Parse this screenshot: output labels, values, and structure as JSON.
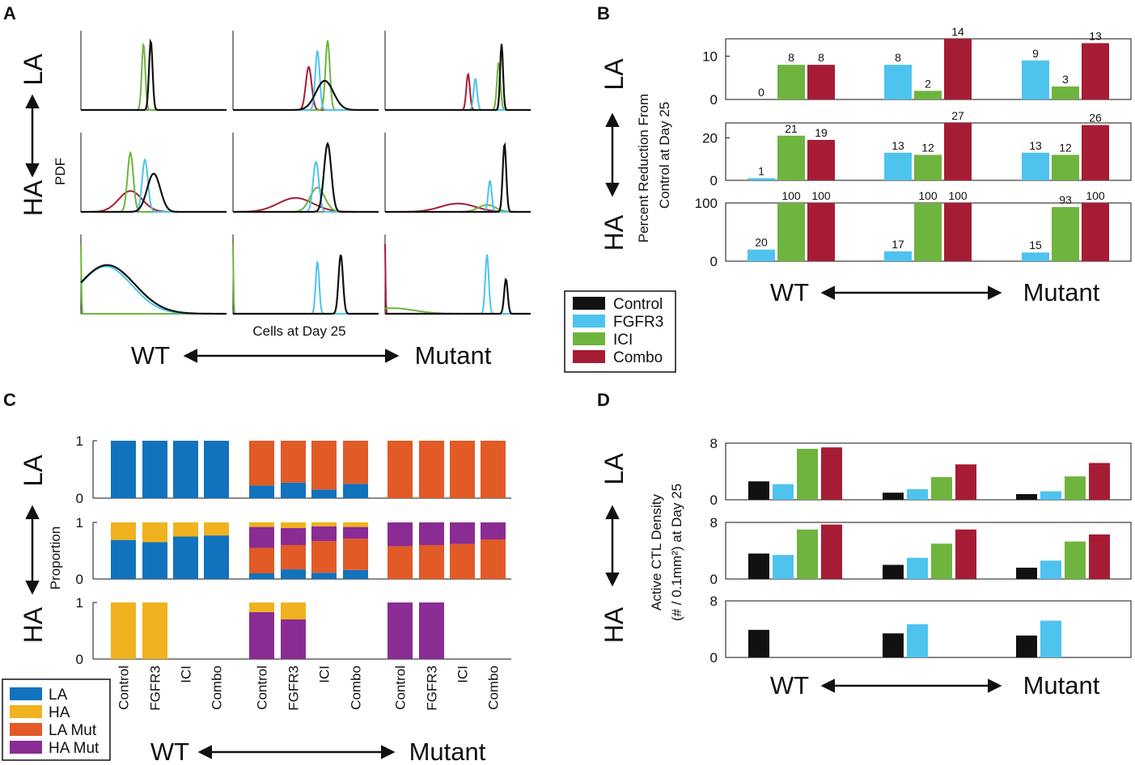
{
  "colors": {
    "control": "#111111",
    "fgfr3": "#4ec3ee",
    "ici": "#6fb43f",
    "combo": "#a61c34",
    "la": "#1172be",
    "ha": "#f0b21e",
    "la_mut": "#e25a26",
    "ha_mut": "#8a2c94"
  },
  "row_labels": {
    "la": "LA",
    "ha": "HA"
  },
  "direction": {
    "wt": "WT",
    "mutant": "Mutant"
  },
  "chart_data": [
    {
      "panel": "A",
      "type": "line",
      "ylabel": "PDF",
      "xlabel": "Cells at Day 25",
      "series_names": [
        "Control",
        "FGFR3",
        "ICI",
        "Combo"
      ],
      "grid": [
        [
          {
            "peaks": {
              "Control": [
                [
                  0.48,
                  0.012,
                  1.0
                ]
              ],
              "ICI": [
                [
                  0.43,
                  0.012,
                  0.95
                ]
              ]
            }
          },
          {
            "peaks": {
              "Control": [
                [
                  0.63,
                  0.06,
                  0.42
                ]
              ],
              "Combo": [
                [
                  0.52,
                  0.02,
                  0.62
                ]
              ],
              "FGFR3": [
                [
                  0.58,
                  0.015,
                  0.85
                ]
              ],
              "ICI": [
                [
                  0.65,
                  0.015,
                  1.0
                ]
              ]
            }
          },
          {
            "peaks": {
              "Control": [
                [
                  0.8,
                  0.01,
                  0.95
                ]
              ],
              "Combo": [
                [
                  0.57,
                  0.012,
                  0.52
                ]
              ],
              "FGFR3": [
                [
                  0.62,
                  0.012,
                  0.45
                ]
              ],
              "ICI": [
                [
                  0.78,
                  0.012,
                  0.68
                ]
              ]
            }
          }
        ],
        [
          {
            "peaks": {
              "Control": [
                [
                  0.5,
                  0.045,
                  0.55
                ]
              ],
              "ICI": [
                [
                  0.34,
                  0.02,
                  0.85
                ]
              ],
              "FGFR3": [
                [
                  0.44,
                  0.02,
                  0.75
                ]
              ],
              "Combo": [
                [
                  0.34,
                  0.08,
                  0.3
                ]
              ]
            }
          },
          {
            "peaks": {
              "Control": [
                [
                  0.65,
                  0.025,
                  0.98
                ]
              ],
              "Combo": [
                [
                  0.43,
                  0.12,
                  0.2
                ]
              ],
              "FGFR3": [
                [
                  0.57,
                  0.02,
                  0.72
                ]
              ],
              "ICI": [
                [
                  0.58,
                  0.05,
                  0.35
                ]
              ]
            }
          },
          {
            "peaks": {
              "Control": [
                [
                  0.82,
                  0.012,
                  0.98
                ]
              ],
              "Combo": [
                [
                  0.5,
                  0.12,
                  0.12
                ]
              ],
              "FGFR3": [
                [
                  0.72,
                  0.012,
                  0.45
                ]
              ],
              "ICI": [
                [
                  0.7,
                  0.06,
                  0.1
                ]
              ]
            }
          }
        ],
        [
          {
            "peaks": {
              "Control": [
                [
                  0.18,
                  0.19,
                  0.7
                ]
              ],
              "FGFR3": [
                [
                  0.17,
                  0.18,
                  0.68
                ]
              ],
              "ICI": [
                [
                  0.0,
                  0.003,
                  1.0
                ]
              ]
            }
          },
          {
            "peaks": {
              "Control": [
                [
                  0.74,
                  0.015,
                  0.85
                ]
              ],
              "FGFR3": [
                [
                  0.58,
                  0.012,
                  0.75
                ]
              ],
              "ICI": [
                [
                  0.0,
                  0.003,
                  1.0
                ]
              ]
            }
          },
          {
            "peaks": {
              "Control": [
                [
                  0.83,
                  0.012,
                  0.5
                ]
              ],
              "FGFR3": [
                [
                  0.7,
                  0.012,
                  0.85
                ]
              ],
              "Combo": [
                [
                  0.0,
                  0.003,
                  1.0
                ]
              ],
              "ICI": [
                [
                  0.05,
                  0.15,
                  0.08
                ]
              ]
            }
          }
        ]
      ]
    },
    {
      "panel": "B",
      "type": "bar",
      "ylabel_lines": [
        "Percent Reduction From",
        "Control at Day 25"
      ],
      "groups": [
        "WT",
        "",
        "Mutant"
      ],
      "series": [
        "FGFR3",
        "ICI",
        "Combo"
      ],
      "rows": [
        {
          "ylim": [
            0,
            14
          ],
          "ticks": [
            0,
            10
          ],
          "values": [
            [
              0,
              8,
              8
            ],
            [
              8,
              2,
              14
            ],
            [
              9,
              3,
              13
            ]
          ],
          "labels": [
            [
              "0",
              "8",
              "8"
            ],
            [
              "8",
              "2",
              "14"
            ],
            [
              "9",
              "3",
              "13"
            ]
          ]
        },
        {
          "ylim": [
            0,
            27
          ],
          "ticks": [
            0,
            20
          ],
          "values": [
            [
              1,
              21,
              19
            ],
            [
              13,
              12,
              27
            ],
            [
              13,
              12,
              26
            ]
          ],
          "labels": [
            [
              "1",
              "21",
              "19"
            ],
            [
              "13",
              "12",
              "27"
            ],
            [
              "13",
              "12",
              "26"
            ]
          ]
        },
        {
          "ylim": [
            0,
            100
          ],
          "ticks": [
            0,
            100
          ],
          "values": [
            [
              20,
              100,
              100
            ],
            [
              17,
              100,
              100
            ],
            [
              15,
              93,
              100
            ]
          ],
          "labels": [
            [
              "20",
              "100",
              "100"
            ],
            [
              "17",
              "100",
              "100"
            ],
            [
              "15",
              "93",
              "100"
            ]
          ]
        }
      ]
    },
    {
      "panel": "C",
      "type": "bar",
      "stacked": true,
      "ylabel": "Proportion",
      "categories": [
        "Control",
        "FGFR3",
        "ICI",
        "Combo",
        "Control",
        "FGFR3",
        "ICI",
        "Combo",
        "Control",
        "FGFR3",
        "ICI",
        "Combo"
      ],
      "components": [
        "LA",
        "HA",
        "LA Mut",
        "HA Mut"
      ],
      "ticks": [
        0,
        1
      ],
      "rows": [
        [
          [
            1,
            0,
            0,
            0
          ],
          [
            1,
            0,
            0,
            0
          ],
          [
            1,
            0,
            0,
            0
          ],
          [
            1,
            0,
            0,
            0
          ],
          [
            0.22,
            0,
            0.78,
            0
          ],
          [
            0.27,
            0,
            0.73,
            0
          ],
          [
            0.15,
            0,
            0.85,
            0
          ],
          [
            0.25,
            0,
            0.75,
            0
          ],
          [
            0,
            0,
            1,
            0
          ],
          [
            0,
            0,
            1,
            0
          ],
          [
            0,
            0,
            1,
            0
          ],
          [
            0,
            0,
            1,
            0
          ]
        ],
        [
          [
            0.69,
            0.31,
            0,
            0
          ],
          [
            0.65,
            0.35,
            0,
            0
          ],
          [
            0.75,
            0.25,
            0,
            0
          ],
          [
            0.77,
            0.23,
            0,
            0
          ],
          [
            0.1,
            0.08,
            0.45,
            0.37
          ],
          [
            0.17,
            0.1,
            0.43,
            0.3
          ],
          [
            0.11,
            0.07,
            0.56,
            0.26
          ],
          [
            0.16,
            0.08,
            0.55,
            0.21
          ],
          [
            0,
            0,
            0.58,
            0.42
          ],
          [
            0,
            0,
            0.6,
            0.4
          ],
          [
            0,
            0,
            0.62,
            0.38
          ],
          [
            0,
            0,
            0.7,
            0.3
          ]
        ],
        [
          [
            0,
            1,
            0,
            0
          ],
          [
            0,
            1,
            0,
            0
          ],
          null,
          null,
          [
            0,
            0.17,
            0,
            0.83
          ],
          [
            0,
            0.3,
            0,
            0.7
          ],
          null,
          null,
          [
            0,
            0,
            0,
            1
          ],
          [
            0,
            0,
            0,
            1
          ],
          null,
          null
        ]
      ]
    },
    {
      "panel": "D",
      "type": "bar",
      "ylabel_lines": [
        "Active CTL Density",
        "(# / 0.1mm²) at Day 25"
      ],
      "series": [
        "Control",
        "FGFR3",
        "ICI",
        "Combo"
      ],
      "ylim": [
        0,
        8
      ],
      "ticks": [
        0,
        8
      ],
      "rows": [
        [
          [
            2.6,
            2.2,
            7.2,
            7.4
          ],
          [
            1.0,
            1.5,
            3.2,
            5.0
          ],
          [
            0.8,
            1.2,
            3.3,
            5.2
          ]
        ],
        [
          [
            3.6,
            3.4,
            7.0,
            7.7
          ],
          [
            2.0,
            3.0,
            5.0,
            7.0
          ],
          [
            1.6,
            2.6,
            5.3,
            6.3
          ]
        ],
        [
          [
            3.9,
            null,
            null,
            null
          ],
          [
            3.4,
            4.7,
            null,
            null
          ],
          [
            3.1,
            5.2,
            null,
            null
          ]
        ]
      ]
    }
  ],
  "legend_treatment": [
    "Control",
    "FGFR3",
    "ICI",
    "Combo"
  ],
  "legend_cell": [
    "LA",
    "HA",
    "LA Mut",
    "HA Mut"
  ],
  "panel_letters": [
    "A",
    "B",
    "C",
    "D"
  ]
}
